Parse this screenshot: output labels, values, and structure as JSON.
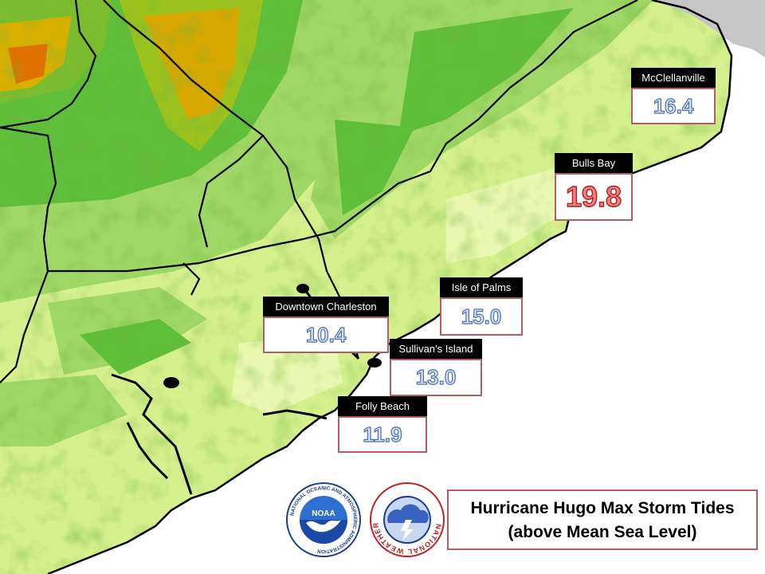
{
  "title": {
    "line1": "Hurricane Hugo Max Storm Tides",
    "line2": "(above Mean Sea Level)"
  },
  "stations": [
    {
      "name": "McClellanville",
      "value": "16.4",
      "peak": false
    },
    {
      "name": "Bulls Bay",
      "value": "19.8",
      "peak": true
    },
    {
      "name": "Isle of Palms",
      "value": "15.0",
      "peak": false
    },
    {
      "name": "Downtown Charleston",
      "value": "10.4",
      "peak": false
    },
    {
      "name": "Sullivan’s Island",
      "value": "13.0",
      "peak": false
    },
    {
      "name": "Folly Beach",
      "value": "11.9",
      "peak": false
    }
  ],
  "logos": {
    "noaa": {
      "center_text": "NOAA",
      "ring_text": "NATIONAL OCEANIC AND ATMOSPHERIC ADMINISTRATION"
    },
    "nws": {
      "ring_text": "NATIONAL WEATHER SERVICE"
    }
  },
  "colors": {
    "elevation_low": "#eaf7b0",
    "elevation_mid": "#8fd35a",
    "elevation_high": "#e8a000",
    "ocean": "#ffffff",
    "boundary": "#000000",
    "value_text": "#4a6fae",
    "peak_value_text": "#b02020",
    "box_border": "#b06060"
  }
}
